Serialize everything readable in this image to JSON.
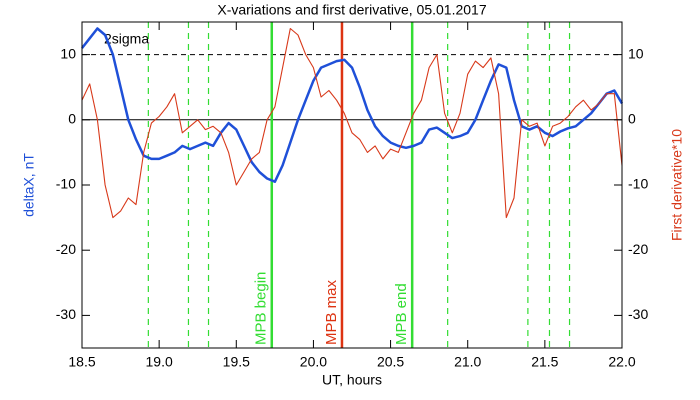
{
  "chart_data": {
    "type": "line",
    "title": "X-variations and first derivative, 05.01.2017",
    "xlabel": "UT, hours",
    "ylabel": "deltaX, nT",
    "y2label": "First derivative*10",
    "xlim": [
      18.5,
      22.0
    ],
    "xticks": [
      18.5,
      {
        "value": 19.0,
        "label": "19.0"
      },
      19.5,
      {
        "value": 20.0,
        "label": "20.0"
      },
      20.5,
      {
        "value": 21.0,
        "label": "21.0"
      },
      21.5,
      {
        "value": 22.0,
        "label": "22.0"
      }
    ],
    "ylim": [
      -35,
      15
    ],
    "yticks": [
      -30,
      -20,
      -10,
      0,
      10
    ],
    "y2lim": [
      -35,
      15
    ],
    "y2ticks": [
      -30,
      -20,
      -10,
      0,
      10
    ],
    "x": [
      18.5,
      18.55,
      18.6,
      18.65,
      18.7,
      18.75,
      18.8,
      18.85,
      18.9,
      18.95,
      19.0,
      19.05,
      19.1,
      19.15,
      19.2,
      19.25,
      19.3,
      19.35,
      19.4,
      19.45,
      19.5,
      19.55,
      19.6,
      19.65,
      19.7,
      19.75,
      19.8,
      19.85,
      19.9,
      19.95,
      20.0,
      20.05,
      20.1,
      20.15,
      20.2,
      20.25,
      20.3,
      20.35,
      20.4,
      20.45,
      20.5,
      20.55,
      20.6,
      20.65,
      20.7,
      20.75,
      20.8,
      20.85,
      20.9,
      20.95,
      21.0,
      21.05,
      21.1,
      21.15,
      21.2,
      21.25,
      21.3,
      21.35,
      21.4,
      21.45,
      21.5,
      21.55,
      21.6,
      21.65,
      21.7,
      21.75,
      21.8,
      21.85,
      21.9,
      21.95,
      22.0
    ],
    "series": [
      {
        "name": "deltaX",
        "color": "#1f50d8",
        "axis": "y",
        "values": [
          11,
          12.5,
          14,
          13,
          10,
          5,
          0,
          -3,
          -5.5,
          -6,
          -6,
          -5.5,
          -5,
          -4,
          -4.5,
          -4,
          -3.5,
          -4,
          -2,
          -0.5,
          -1.5,
          -4,
          -6.5,
          -8,
          -9,
          -9.5,
          -7,
          -3.5,
          0,
          3,
          6,
          8,
          8.5,
          9,
          9.2,
          8,
          5,
          1.5,
          -1,
          -2.5,
          -3.5,
          -4,
          -4.3,
          -4,
          -3.5,
          -1.5,
          -1.2,
          -2,
          -2.8,
          -2.5,
          -2,
          0,
          3,
          6,
          8.5,
          8,
          3,
          -1,
          -1.5,
          -1,
          -2,
          -2.5,
          -1.8,
          -1.3,
          -1,
          0,
          1,
          2.5,
          4,
          4.5,
          2.5
        ]
      },
      {
        "name": "First derivative*10",
        "color": "#d8391a",
        "axis": "y2",
        "values": [
          3,
          5.5,
          0,
          -10,
          -15,
          -14,
          -12,
          -13,
          -5,
          -0.5,
          0.5,
          2,
          4,
          -2,
          -1,
          0,
          -1.5,
          -1,
          -2,
          -5,
          -10,
          -8,
          -6,
          -5,
          0,
          2,
          8,
          14,
          13,
          10,
          8,
          3.5,
          4.5,
          3,
          1,
          -2,
          -3,
          -5,
          -4,
          -6,
          -4.5,
          -5,
          -2,
          1,
          3,
          8,
          10,
          1,
          -2,
          1,
          7,
          9,
          8,
          9.5,
          4,
          -15,
          -12,
          0,
          -1,
          -0.5,
          -4,
          -1,
          -0.5,
          0.5,
          2,
          3,
          1.5,
          2.5,
          4,
          4,
          -7
        ]
      }
    ],
    "hlines": [
      {
        "y": 10,
        "style": "dashed",
        "color": "#000000",
        "label": "2sigma"
      },
      {
        "y": 0,
        "style": "solid",
        "color": "#000000"
      }
    ],
    "vlines": [
      {
        "x": 18.93,
        "style": "dashed",
        "color": "#33dd33"
      },
      {
        "x": 19.19,
        "style": "dashed",
        "color": "#33dd33"
      },
      {
        "x": 19.32,
        "style": "dashed",
        "color": "#33dd33"
      },
      {
        "x": 19.73,
        "style": "solid",
        "color": "#33dd33",
        "label": "MPB begin"
      },
      {
        "x": 20.185,
        "style": "solid",
        "color": "#dd3311",
        "label": "MPB max"
      },
      {
        "x": 20.64,
        "style": "solid",
        "color": "#33dd33",
        "label": "MPB end"
      },
      {
        "x": 20.87,
        "style": "dashed",
        "color": "#33dd33"
      },
      {
        "x": 21.39,
        "style": "dashed",
        "color": "#33dd33"
      },
      {
        "x": 21.53,
        "style": "dashed",
        "color": "#33dd33"
      },
      {
        "x": 21.66,
        "style": "dashed",
        "color": "#33dd33"
      }
    ]
  }
}
